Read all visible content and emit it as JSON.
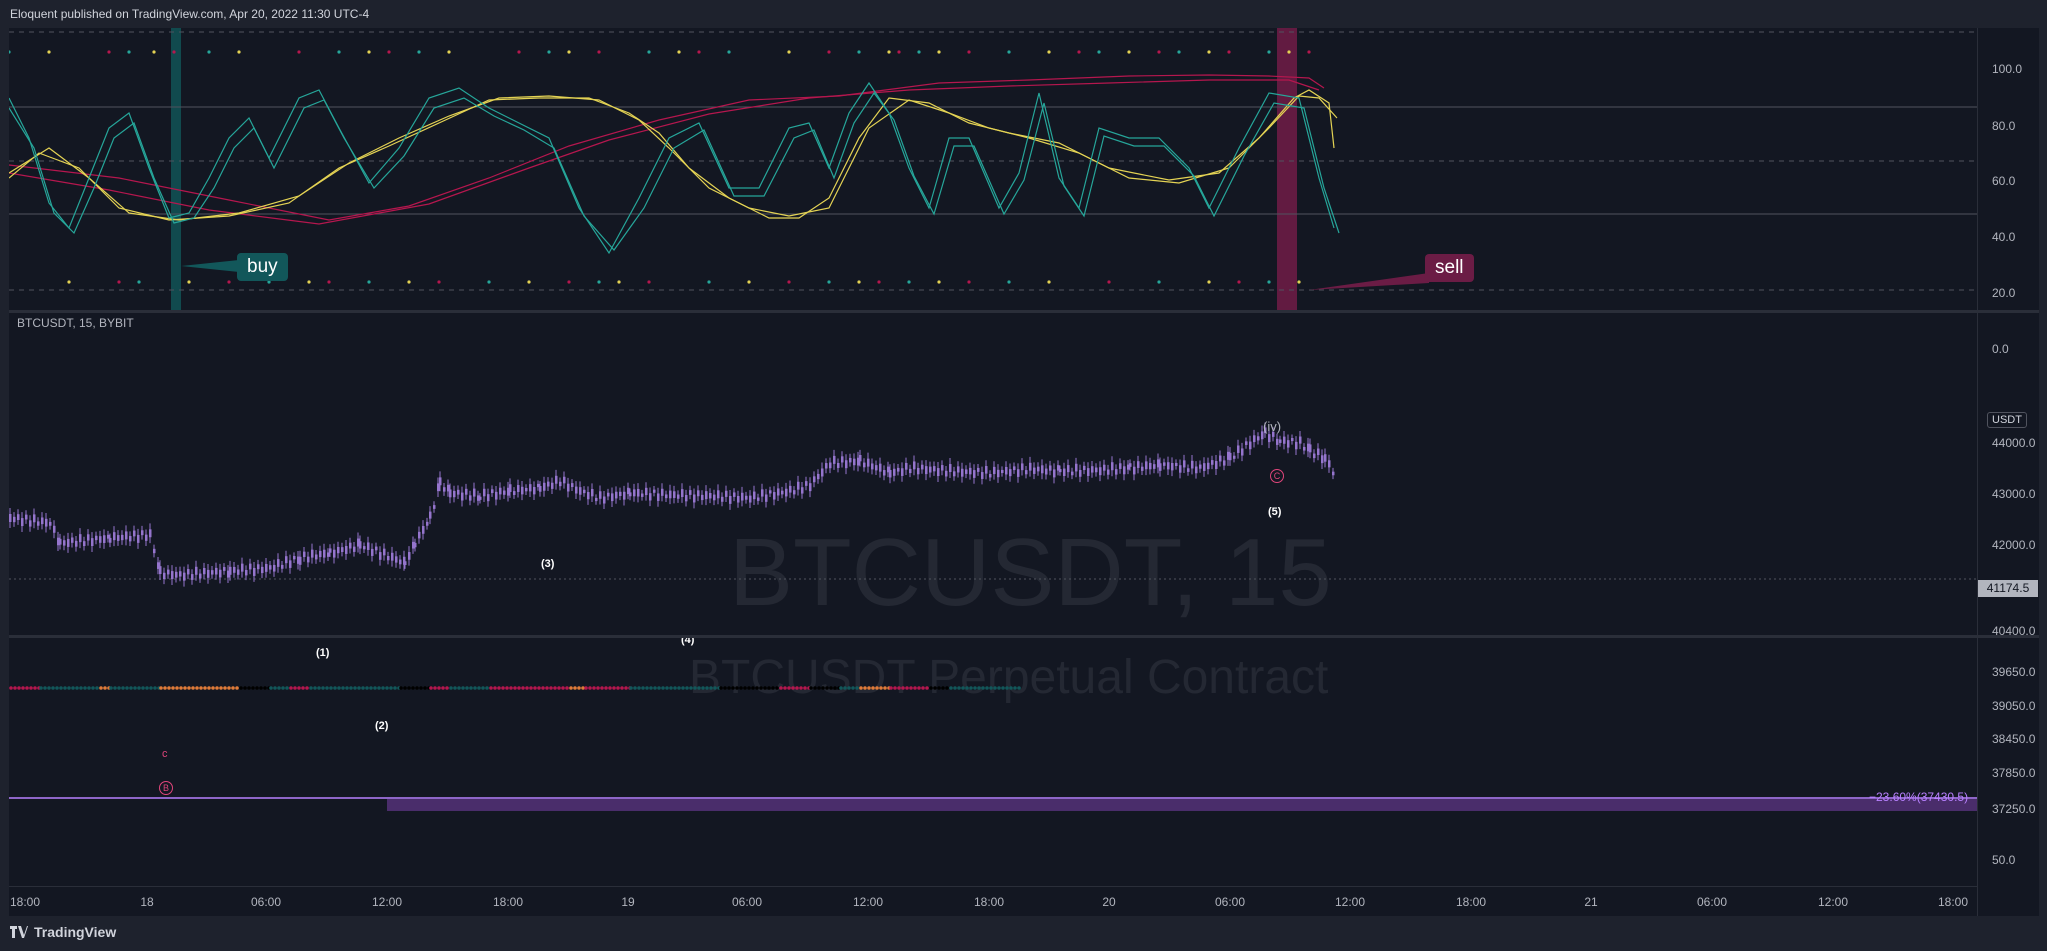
{
  "header": {
    "title": "Eloquent published on TradingView.com, Apr 20, 2022 11:30 UTC-4"
  },
  "oscillator": {
    "signals": {
      "buy": "buy",
      "sell": "sell"
    },
    "price_axis": [
      "100.0",
      "80.0",
      "60.0",
      "40.0",
      "20.0",
      "0.0"
    ],
    "colors": {
      "teal": "#26a69a",
      "yellow": "#e4d354",
      "crimson": "#b5174e",
      "teal_band": "#12575a",
      "sell_band": "#6b1c45"
    }
  },
  "main": {
    "symbol_line": "BTCUSDT, 15, BYBIT",
    "currency": "USDT",
    "watermark_symbol": "BTCUSDT, 15",
    "watermark_desc": "BTCUSDT Perpetual Contract",
    "current_price": "41174.5",
    "price_axis": [
      "44000.0",
      "43000.0",
      "42000.0",
      "40400.0",
      "39650.0",
      "39050.0",
      "38450.0",
      "37850.0",
      "37250.0"
    ],
    "fib_label": "−23.60%(37430.5)",
    "wave_labels": {
      "iv": "(iv)",
      "c_circle": "C",
      "w5": "(5)",
      "w3": "(3)",
      "w4": "(4)",
      "w1": "(1)",
      "w2": "(2)",
      "c_small": "c",
      "b_circle": "B"
    },
    "candle_color": "#9575cd"
  },
  "strip": {
    "axis": "50.0"
  },
  "time_axis": [
    "18:00",
    "18",
    "06:00",
    "12:00",
    "18:00",
    "19",
    "06:00",
    "12:00",
    "18:00",
    "20",
    "06:00",
    "12:00",
    "18:00",
    "21",
    "06:00",
    "12:00",
    "18:00"
  ],
  "footer": {
    "brand": "TradingView"
  }
}
